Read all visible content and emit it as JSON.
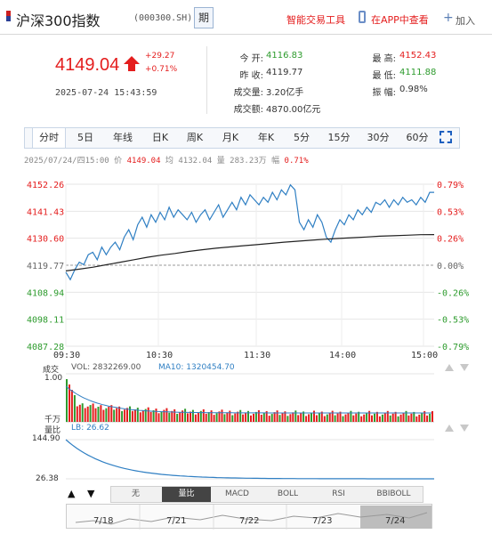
{
  "header": {
    "index_name": "沪深300指数",
    "index_code": "(000300.SH)",
    "period_btn": "期",
    "tool_link": "智能交易工具",
    "app_link": "在APP中查看",
    "add_label": "加入",
    "add_icon": "plus-icon",
    "phone_icon": "phone-icon"
  },
  "quote": {
    "price": "4149.04",
    "change": "+29.27",
    "change_pct": "+0.71%",
    "datetime": "2025-07-24 15:43:59",
    "open_label": "今    开:",
    "open": "4116.83",
    "prev_close_label": "昨    收:",
    "prev_close": "4119.77",
    "volume_label": "成交量:",
    "volume": "3.20亿手",
    "amount_label": "成交额:",
    "amount": "4870.00亿元",
    "high_label": "最    高:",
    "high": "4152.43",
    "low_label": "最    低:",
    "low": "4111.88",
    "amplitude_label": "振    幅:",
    "amplitude": "0.98%",
    "up_color": "#e41d1d",
    "down_color": "#2d9b2d"
  },
  "tabs": [
    "分时",
    "5日",
    "年线",
    "日K",
    "周K",
    "月K",
    "年K",
    "5分",
    "15分",
    "30分",
    "60分"
  ],
  "active_tab": "分时",
  "info_line": {
    "date": "2025/07/24/四15:00",
    "price_label": "价",
    "price": "4149.04",
    "avg_label": "均",
    "avg": "4132.04",
    "vol_label": "量",
    "vol": "283.23万",
    "amp_label": "幅",
    "amp": "0.71%"
  },
  "chart_data": [
    {
      "type": "line",
      "y_left_ticks": [
        "4152.26",
        "4141.43",
        "4130.60",
        "4119.77",
        "4108.94",
        "4098.11",
        "4087.28"
      ],
      "y_right_ticks": [
        "0.79%",
        "0.53%",
        "0.26%",
        "0.00%",
        "-0.26%",
        "-0.53%",
        "-0.79%"
      ],
      "x_ticks": [
        "09:30",
        "10:30",
        "11:30",
        "14:00",
        "15:00"
      ],
      "ylim": [
        4087.28,
        4152.26
      ],
      "series": [
        {
          "values": [
            4117,
            4114,
            4118,
            4121,
            4120,
            4124,
            4125,
            4122,
            4127,
            4124,
            4127,
            4129,
            4126,
            4131,
            4134,
            4130,
            4136,
            4139,
            4135,
            4140,
            4137,
            4141,
            4138,
            4143,
            4139,
            4142,
            4140,
            4138,
            4141,
            4137,
            4140,
            4142,
            4138,
            4141,
            4144,
            4139,
            4142,
            4145,
            4142,
            4147,
            4144,
            4148,
            4146,
            4144,
            4147,
            4145,
            4149,
            4146,
            4150,
            4148,
            4152,
            4150,
            4137,
            4134,
            4138,
            4135,
            4140,
            4137,
            4131,
            4129,
            4134,
            4138,
            4136,
            4140,
            4138,
            4142,
            4140,
            4143,
            4141,
            4145,
            4144,
            4146,
            4143,
            4146,
            4144,
            4147,
            4145,
            4146,
            4144,
            4147,
            4145,
            4149,
            4149
          ]
        },
        {
          "values": [
            4117.5,
            4118.2,
            4119,
            4120,
            4121,
            4122,
            4123,
            4123.8,
            4124.5,
            4125.3,
            4126,
            4126.6,
            4127.1,
            4127.6,
            4128,
            4128.5,
            4129,
            4129.4,
            4129.8,
            4130.2,
            4130.5,
            4130.8,
            4131.1,
            4131.4,
            4131.6,
            4131.8,
            4132,
            4132.04
          ]
        }
      ]
    },
    {
      "type": "bar",
      "title": "成交",
      "legend": [
        "VOL: 2832269.00",
        "MA10: 1320454.70"
      ],
      "y_ticks": [
        "1.00",
        "千万"
      ]
    },
    {
      "type": "line",
      "title": "量比",
      "legend": [
        "LB: 26.62"
      ],
      "y_ticks": [
        "144.90",
        "26.38"
      ]
    }
  ],
  "indicator_tabs": [
    "无",
    "量比",
    "MACD",
    "BOLL",
    "RSI",
    "BBIBOLL"
  ],
  "active_indicator": "量比",
  "days": [
    "7/18",
    "7/21",
    "7/22",
    "7/23",
    "7/24"
  ],
  "colors": {
    "line": "#2f7fc3",
    "avg": "#222222",
    "up": "#e41d1d",
    "down": "#2d9b2d"
  }
}
